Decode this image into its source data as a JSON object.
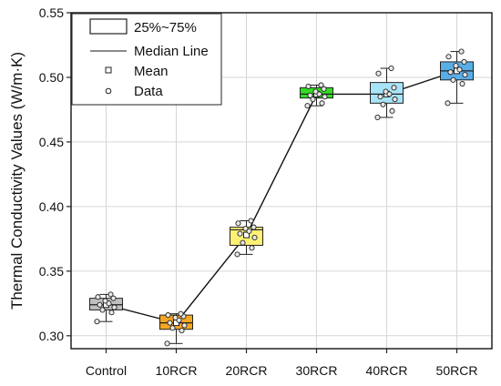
{
  "chart_data": {
    "type": "box",
    "title": "",
    "xlabel": "",
    "ylabel": "Thermal Conductivity Values (W/m·K)",
    "ylim": [
      0.29,
      0.55
    ],
    "yticks": [
      "0.30",
      "0.35",
      "0.40",
      "0.45",
      "0.50",
      "0.55"
    ],
    "ytick_values": [
      0.3,
      0.35,
      0.4,
      0.45,
      0.5,
      0.55
    ],
    "categories": [
      "Control",
      "10RCR",
      "20RCR",
      "30RCR",
      "40RCR",
      "50RCR"
    ],
    "grid": true,
    "legend_position": "top-left",
    "legend": {
      "box": "25%~75%",
      "median": "Median Line",
      "mean": "Mean",
      "data": "Data"
    },
    "boxes": [
      {
        "category": "Control",
        "color": "#c0c0c0",
        "whisker_low": 0.311,
        "q1": 0.32,
        "median": 0.324,
        "q3": 0.329,
        "whisker_high": 0.332,
        "mean": 0.324,
        "data": [
          0.311,
          0.318,
          0.32,
          0.322,
          0.324,
          0.325,
          0.327,
          0.329,
          0.33,
          0.332
        ]
      },
      {
        "category": "10RCR",
        "color": "#f5a623",
        "whisker_low": 0.294,
        "q1": 0.305,
        "median": 0.31,
        "q3": 0.316,
        "whisker_high": 0.317,
        "mean": 0.31,
        "data": [
          0.294,
          0.304,
          0.306,
          0.308,
          0.31,
          0.312,
          0.314,
          0.315,
          0.316,
          0.317
        ]
      },
      {
        "category": "20RCR",
        "color": "#fff176",
        "whisker_low": 0.363,
        "q1": 0.37,
        "median": 0.382,
        "q3": 0.384,
        "whisker_high": 0.389,
        "mean": 0.378,
        "data": [
          0.363,
          0.368,
          0.372,
          0.376,
          0.379,
          0.381,
          0.383,
          0.384,
          0.387,
          0.389
        ]
      },
      {
        "category": "30RCR",
        "color": "#33dd22",
        "whisker_low": 0.478,
        "q1": 0.484,
        "median": 0.487,
        "q3": 0.492,
        "whisker_high": 0.494,
        "mean": 0.487,
        "data": [
          0.478,
          0.48,
          0.483,
          0.485,
          0.486,
          0.487,
          0.489,
          0.491,
          0.493,
          0.494
        ]
      },
      {
        "category": "40RCR",
        "color": "#a8e4f8",
        "whisker_low": 0.469,
        "q1": 0.48,
        "median": 0.487,
        "q3": 0.496,
        "whisker_high": 0.507,
        "mean": 0.487,
        "data": [
          0.469,
          0.474,
          0.479,
          0.483,
          0.485,
          0.487,
          0.489,
          0.492,
          0.503,
          0.507
        ]
      },
      {
        "category": "50RCR",
        "color": "#5aaee8",
        "whisker_low": 0.48,
        "q1": 0.498,
        "median": 0.505,
        "q3": 0.512,
        "whisker_high": 0.52,
        "mean": 0.505,
        "data": [
          0.48,
          0.495,
          0.498,
          0.502,
          0.504,
          0.506,
          0.509,
          0.512,
          0.516,
          0.52
        ]
      }
    ]
  }
}
